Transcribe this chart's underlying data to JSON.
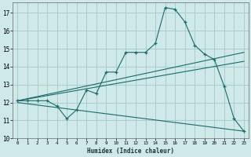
{
  "xlabel": "Humidex (Indice chaleur)",
  "bg_color": "#cfe8e8",
  "grid_color": "#aacccc",
  "line_color": "#1a6b6b",
  "xlim": [
    -0.5,
    23.5
  ],
  "ylim": [
    10,
    17.6
  ],
  "xticks": [
    0,
    1,
    2,
    3,
    4,
    5,
    6,
    7,
    8,
    9,
    10,
    11,
    12,
    13,
    14,
    15,
    16,
    17,
    18,
    19,
    20,
    21,
    22,
    23
  ],
  "yticks": [
    10,
    11,
    12,
    13,
    14,
    15,
    16,
    17
  ],
  "curve1_x": [
    0,
    1,
    2,
    3,
    4,
    5,
    6,
    7,
    8,
    9,
    10,
    11,
    12,
    13,
    14,
    15,
    16,
    17,
    18,
    19,
    20,
    21,
    22,
    23
  ],
  "curve1_y": [
    12.1,
    12.1,
    12.1,
    12.1,
    11.8,
    11.1,
    11.6,
    12.7,
    12.5,
    13.7,
    13.7,
    14.8,
    14.8,
    14.8,
    15.3,
    17.3,
    17.2,
    16.5,
    15.2,
    14.7,
    14.4,
    12.9,
    11.1,
    10.4
  ],
  "curve2_x": [
    0,
    23
  ],
  "curve2_y": [
    12.1,
    14.8
  ],
  "curve3_x": [
    0,
    23
  ],
  "curve3_y": [
    12.1,
    14.3
  ],
  "curve4_x": [
    0,
    23
  ],
  "curve4_y": [
    12.0,
    10.4
  ]
}
